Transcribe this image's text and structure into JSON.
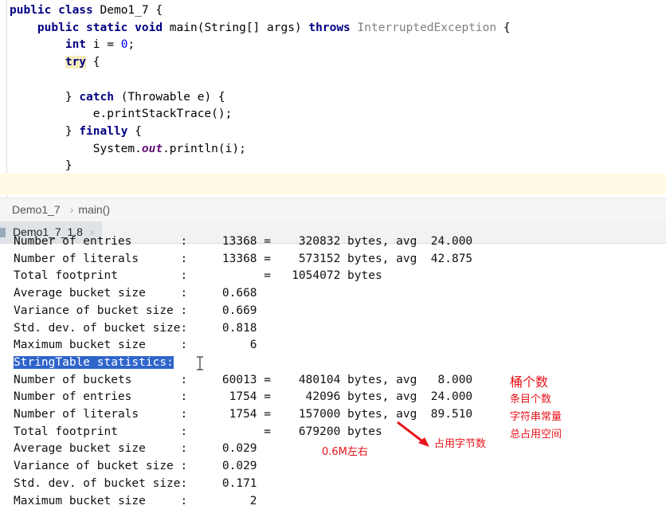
{
  "editor": {
    "lines": [
      [
        [
          "public class ",
          "kw"
        ],
        [
          "Demo1_7 {",
          ""
        ]
      ],
      [
        [
          "    public static void ",
          "kw"
        ],
        [
          "main(String[] args) ",
          ""
        ],
        [
          "throws ",
          "kw"
        ],
        [
          "InterruptedException ",
          "gr"
        ],
        [
          "{",
          ""
        ]
      ],
      [
        [
          "        int ",
          "kw"
        ],
        [
          "i = ",
          ""
        ],
        [
          "0",
          "num"
        ],
        [
          ";",
          ""
        ]
      ],
      [
        [
          "        ",
          ""
        ],
        [
          "try",
          "kw hl"
        ],
        [
          " {",
          ""
        ]
      ],
      [
        [
          "",
          ""
        ]
      ],
      [
        [
          "        } ",
          ""
        ],
        [
          "catch ",
          "kw"
        ],
        [
          "(Throwable e) {",
          ""
        ]
      ],
      [
        [
          "            e.printStackTrace();",
          ""
        ]
      ],
      [
        [
          "        } ",
          ""
        ],
        [
          "finally ",
          "kw"
        ],
        [
          "{",
          ""
        ]
      ],
      [
        [
          "            System.",
          ""
        ],
        [
          "out",
          "st"
        ],
        [
          ".println(i);",
          ""
        ]
      ],
      [
        [
          "        }",
          ""
        ]
      ],
      [
        [
          "",
          ""
        ]
      ]
    ]
  },
  "breadcrumb": [
    "Demo1_7",
    "main()"
  ],
  "breadcrumb_sep": "›",
  "run_tab": {
    "label": "Demo1_7_1.8",
    "close": "×"
  },
  "console": {
    "lines": [
      "Number of entries       :     13368 =    320832 bytes, avg  24.000",
      "Number of literals      :     13368 =    573152 bytes, avg  42.875",
      "Total footprint         :           =   1054072 bytes",
      "Average bucket size     :     0.668",
      "Variance of bucket size :     0.669",
      "Std. dev. of bucket size:     0.818",
      "Maximum bucket size     :         6",
      "StringTable statistics:",
      "Number of buckets       :     60013 =    480104 bytes, avg   8.000",
      "Number of entries       :      1754 =     42096 bytes, avg  24.000",
      "Number of literals      :      1754 =    157000 bytes, avg  89.510",
      "Total footprint         :           =    679200 bytes",
      "Average bucket size     :     0.029",
      "Variance of bucket size :     0.029",
      "Std. dev. of bucket size:     0.171",
      "Maximum bucket size     :         2"
    ]
  },
  "annotations": {
    "buckets": "桶个数",
    "entries": "条目个数",
    "literals": "字符串常量",
    "footprint": "总占用空间",
    "approx": "0.6M左右",
    "bytes": "占用字节数"
  },
  "colors": {
    "annotation": "#e8131b",
    "selection": "#2f65ca",
    "keyword": "#000080"
  }
}
